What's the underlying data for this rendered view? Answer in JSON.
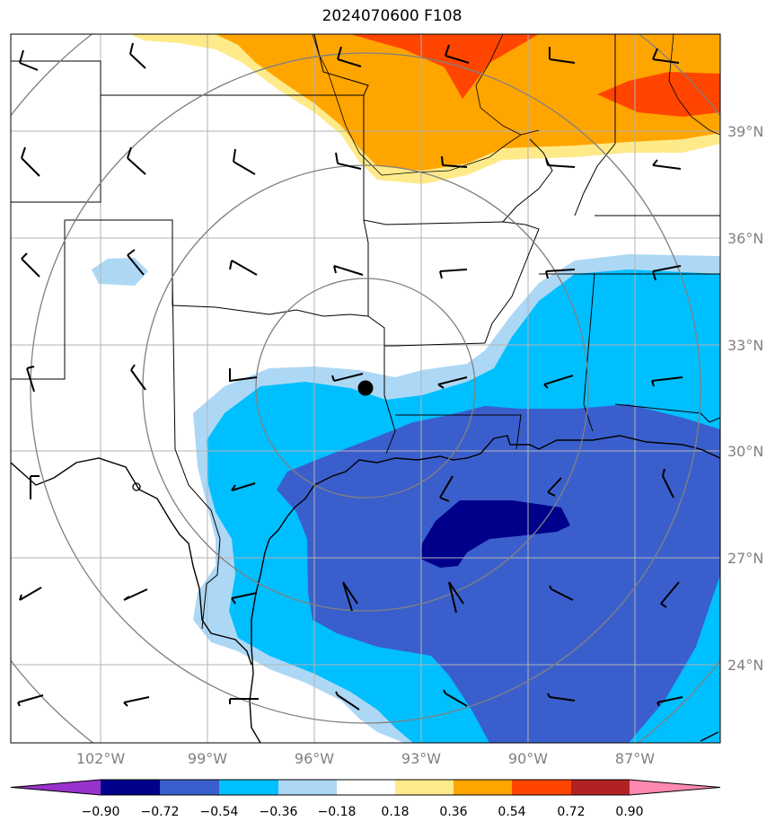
{
  "title": "2024070600 F108",
  "map": {
    "lon_ticks": [
      {
        "label": "102°W",
        "lon": -102
      },
      {
        "label": "99°W",
        "lon": -99
      },
      {
        "label": "96°W",
        "lon": -96
      },
      {
        "label": "93°W",
        "lon": -93
      },
      {
        "label": "90°W",
        "lon": -90
      },
      {
        "label": "87°W",
        "lon": -87
      }
    ],
    "lat_ticks": [
      {
        "label": "39°N",
        "lat": 39
      },
      {
        "label": "36°N",
        "lat": 36
      },
      {
        "label": "33°N",
        "lat": 33
      },
      {
        "label": "30°N",
        "lat": 30
      },
      {
        "label": "27°N",
        "lat": 27
      },
      {
        "label": "24°N",
        "lat": 24
      }
    ],
    "center_marker": {
      "lon": -94.6,
      "lat": 31.8
    },
    "range_rings": 4
  },
  "colorbar": {
    "ticks": [
      "−0.90",
      "−0.72",
      "−0.54",
      "−0.36",
      "−0.18",
      "0.18",
      "0.36",
      "0.54",
      "0.72",
      "0.90"
    ],
    "colors": [
      "#9932cc",
      "#00008b",
      "#3a5fcd",
      "#00bfff",
      "#add8f5",
      "#ffffff",
      "#ffea8a",
      "#ffa500",
      "#ff4500",
      "#b22222",
      "#ff88b0"
    ]
  }
}
